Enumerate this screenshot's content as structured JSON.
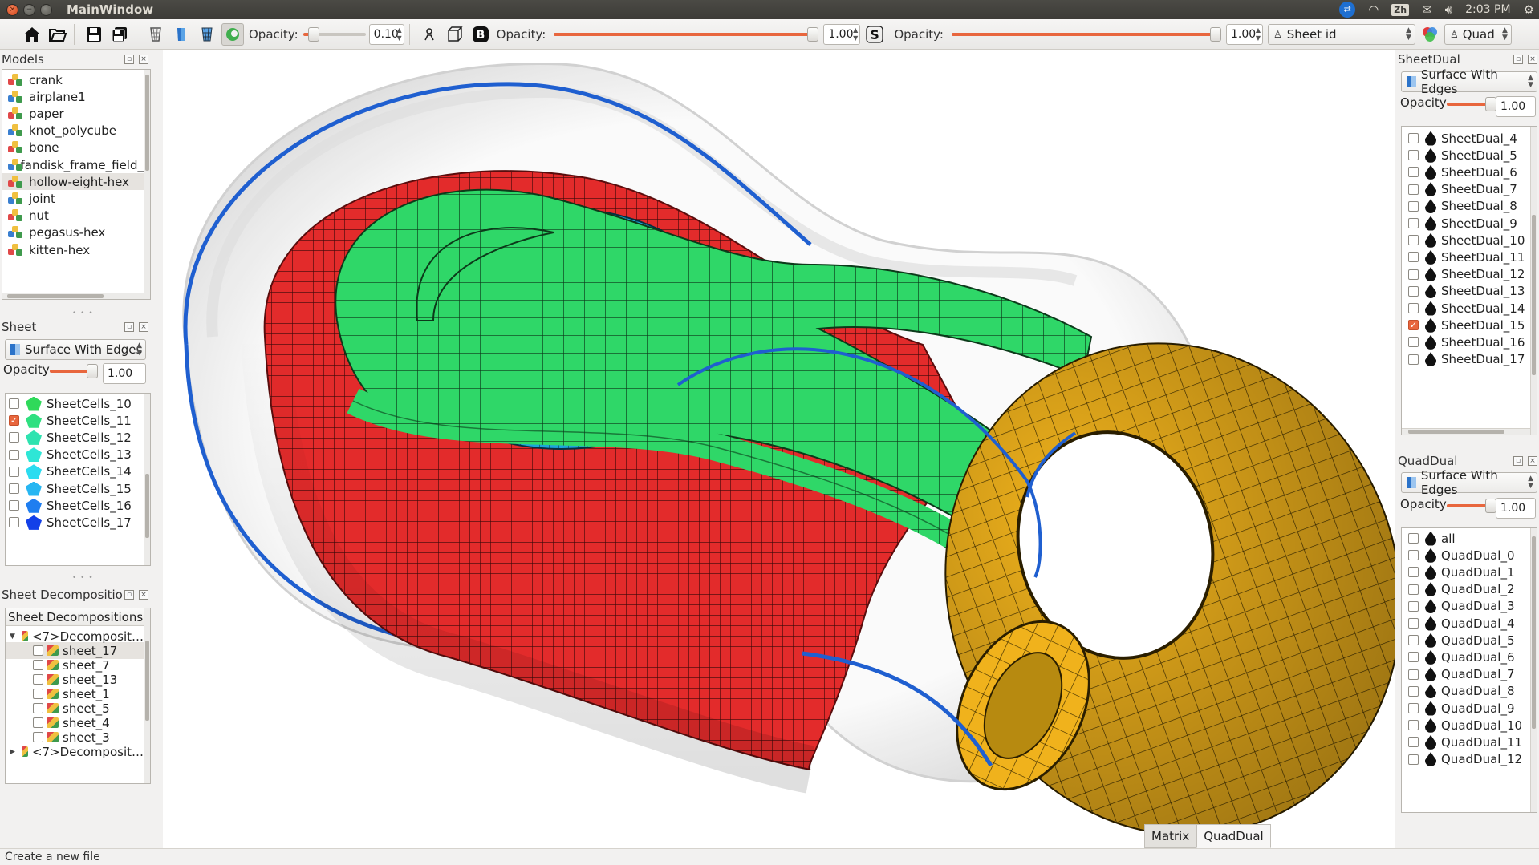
{
  "window": {
    "title": "MainWindow"
  },
  "tray": {
    "time": "2:03 PM",
    "lang": "Zh"
  },
  "toolbar": {
    "opacity1_label": "Opacity:",
    "opacity1_value": "0.10",
    "opacity1_level": 0.1,
    "opacity2_label": "Opacity:",
    "opacity2_value": "1.00",
    "opacity2_level": 1.0,
    "opacity3_label": "Opacity:",
    "opacity3_value": "1.00",
    "opacity3_level": 1.0,
    "color_mode": "Sheet id",
    "element_mode": "Quad"
  },
  "models": {
    "title": "Models",
    "items": [
      "crank",
      "airplane1",
      "paper",
      "knot_polycube",
      "bone",
      "fandisk_frame_field_",
      "hollow-eight-hex",
      "joint",
      "nut",
      "pegasus-hex",
      "kitten-hex"
    ],
    "selected": "hollow-eight-hex"
  },
  "sheet": {
    "title": "Sheet",
    "render_mode": "Surface With Edges",
    "opacity_label": "Opacity",
    "opacity_value": "1.00",
    "items": [
      {
        "label": "SheetCells_10",
        "checked": false,
        "color": "#2fd95a"
      },
      {
        "label": "SheetCells_11",
        "checked": true,
        "color": "#2fe080"
      },
      {
        "label": "SheetCells_12",
        "checked": false,
        "color": "#2ee3b0"
      },
      {
        "label": "SheetCells_13",
        "checked": false,
        "color": "#2ee6d6"
      },
      {
        "label": "SheetCells_14",
        "checked": false,
        "color": "#2bdcf0"
      },
      {
        "label": "SheetCells_15",
        "checked": false,
        "color": "#27b6f2"
      },
      {
        "label": "SheetCells_16",
        "checked": false,
        "color": "#1f7ef0"
      },
      {
        "label": "SheetCells_17",
        "checked": false,
        "color": "#1340e8"
      }
    ]
  },
  "decomp": {
    "title": "Sheet Decompositio…",
    "header": "Sheet Decompositions",
    "group1": "<7>Decomposit…",
    "group2": "<7>Decomposit…",
    "children": [
      "sheet_17",
      "sheet_7",
      "sheet_13",
      "sheet_1",
      "sheet_5",
      "sheet_4",
      "sheet_3"
    ]
  },
  "sheetdual": {
    "title": "SheetDual",
    "render_mode": "Surface With Edges",
    "opacity_label": "Opacity",
    "opacity_value": "1.00",
    "items": [
      {
        "label": "SheetDual_4",
        "checked": false
      },
      {
        "label": "SheetDual_5",
        "checked": false
      },
      {
        "label": "SheetDual_6",
        "checked": false
      },
      {
        "label": "SheetDual_7",
        "checked": false
      },
      {
        "label": "SheetDual_8",
        "checked": false
      },
      {
        "label": "SheetDual_9",
        "checked": false
      },
      {
        "label": "SheetDual_10",
        "checked": false
      },
      {
        "label": "SheetDual_11",
        "checked": false
      },
      {
        "label": "SheetDual_12",
        "checked": false
      },
      {
        "label": "SheetDual_13",
        "checked": false
      },
      {
        "label": "SheetDual_14",
        "checked": false
      },
      {
        "label": "SheetDual_15",
        "checked": true
      },
      {
        "label": "SheetDual_16",
        "checked": false
      },
      {
        "label": "SheetDual_17",
        "checked": false
      }
    ]
  },
  "quaddual": {
    "title": "QuadDual",
    "render_mode": "Surface With Edges",
    "opacity_label": "Opacity",
    "opacity_value": "1.00",
    "items": [
      "all",
      "QuadDual_0",
      "QuadDual_1",
      "QuadDual_2",
      "QuadDual_3",
      "QuadDual_4",
      "QuadDual_5",
      "QuadDual_6",
      "QuadDual_7",
      "QuadDual_8",
      "QuadDual_9",
      "QuadDual_10",
      "QuadDual_11",
      "QuadDual_12"
    ]
  },
  "tabs": [
    "Matrix",
    "QuadDual"
  ],
  "status": "Create a new file",
  "colors": {
    "accent": "#e8663d",
    "red_mesh": "#e32b2b",
    "green_mesh": "#2fd768",
    "blue_mesh": "#1ca5dc",
    "gold_mesh": "#f0b21c",
    "curve": "#1f5fd0"
  }
}
